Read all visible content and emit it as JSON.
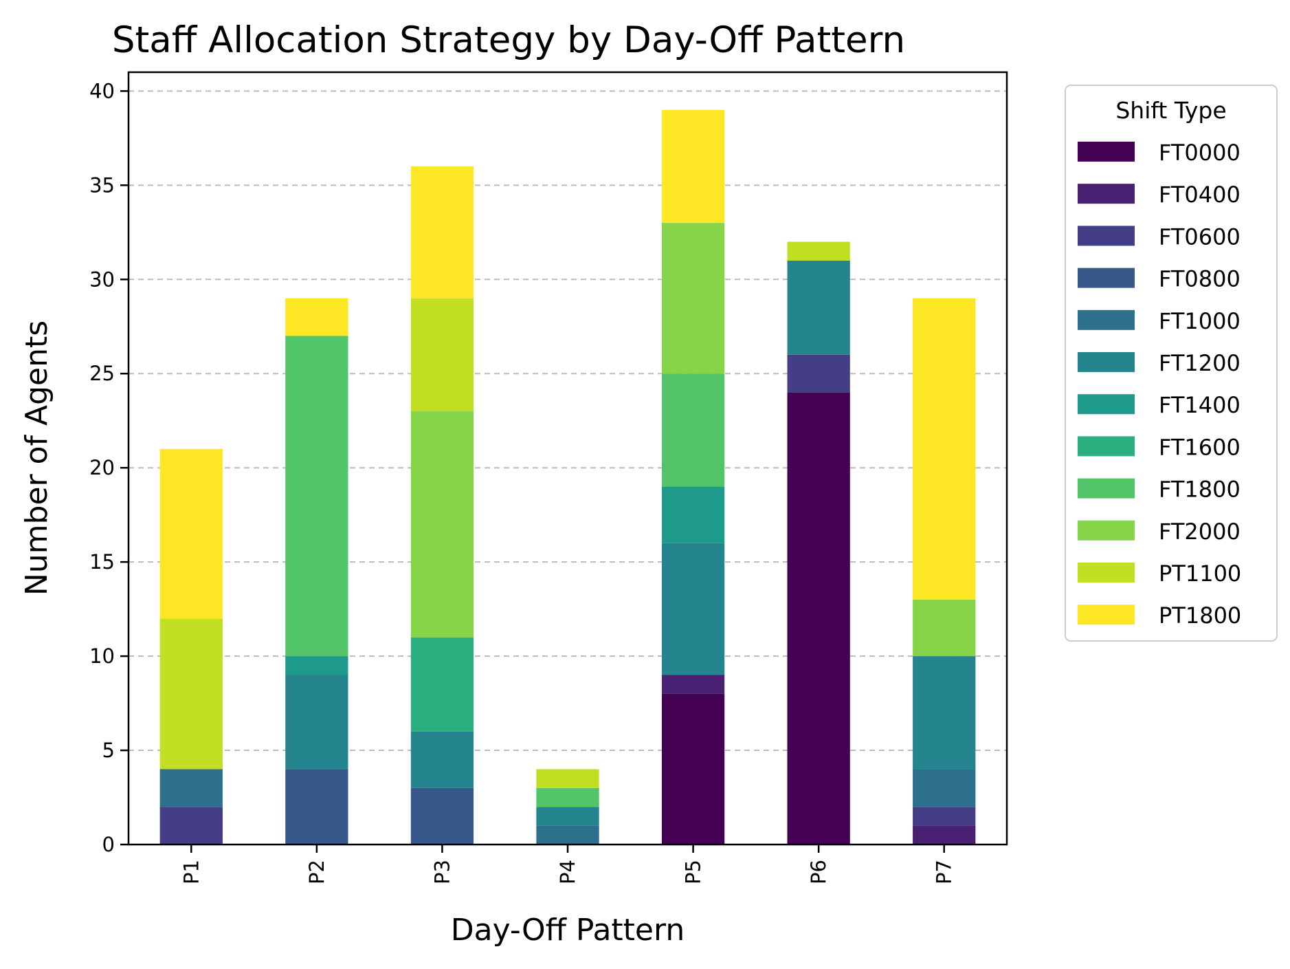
{
  "chart_data": {
    "type": "bar",
    "stacked": true,
    "title": "Staff Allocation Strategy by Day-Off Pattern",
    "xlabel": "Day-Off Pattern",
    "ylabel": "Number of Agents",
    "ylim": [
      0,
      41
    ],
    "yticks": [
      0,
      5,
      10,
      15,
      20,
      25,
      30,
      35,
      40
    ],
    "grid": "y-dashed",
    "legend_title": "Shift Type",
    "legend_position": "outside-right",
    "categories": [
      "P1",
      "P2",
      "P3",
      "P4",
      "P5",
      "P6",
      "P7"
    ],
    "series": [
      {
        "name": "FT0000",
        "color": "#440154",
        "values": [
          0,
          0,
          0,
          0,
          8,
          24,
          0
        ]
      },
      {
        "name": "FT0400",
        "color": "#482173",
        "values": [
          0,
          0,
          0,
          0,
          1,
          0,
          1
        ]
      },
      {
        "name": "FT0600",
        "color": "#433e85",
        "values": [
          2,
          0,
          0,
          0,
          0,
          2,
          1
        ]
      },
      {
        "name": "FT0800",
        "color": "#38588c",
        "values": [
          0,
          4,
          3,
          0,
          0,
          0,
          0
        ]
      },
      {
        "name": "FT1000",
        "color": "#2d708e",
        "values": [
          2,
          0,
          0,
          1,
          0,
          0,
          2
        ]
      },
      {
        "name": "FT1200",
        "color": "#25858e",
        "values": [
          0,
          5,
          3,
          1,
          7,
          5,
          6
        ]
      },
      {
        "name": "FT1400",
        "color": "#1e9b8a",
        "values": [
          0,
          1,
          0,
          0,
          3,
          0,
          0
        ]
      },
      {
        "name": "FT1600",
        "color": "#2ab07f",
        "values": [
          0,
          0,
          5,
          0,
          0,
          0,
          0
        ]
      },
      {
        "name": "FT1800",
        "color": "#52c569",
        "values": [
          0,
          17,
          0,
          1,
          6,
          0,
          0
        ]
      },
      {
        "name": "FT2000",
        "color": "#86d549",
        "values": [
          0,
          0,
          12,
          0,
          8,
          0,
          3
        ]
      },
      {
        "name": "PT1100",
        "color": "#c2df23",
        "values": [
          8,
          0,
          6,
          1,
          0,
          1,
          0
        ]
      },
      {
        "name": "PT1800",
        "color": "#fde725",
        "values": [
          9,
          2,
          7,
          0,
          6,
          0,
          16
        ]
      }
    ]
  }
}
